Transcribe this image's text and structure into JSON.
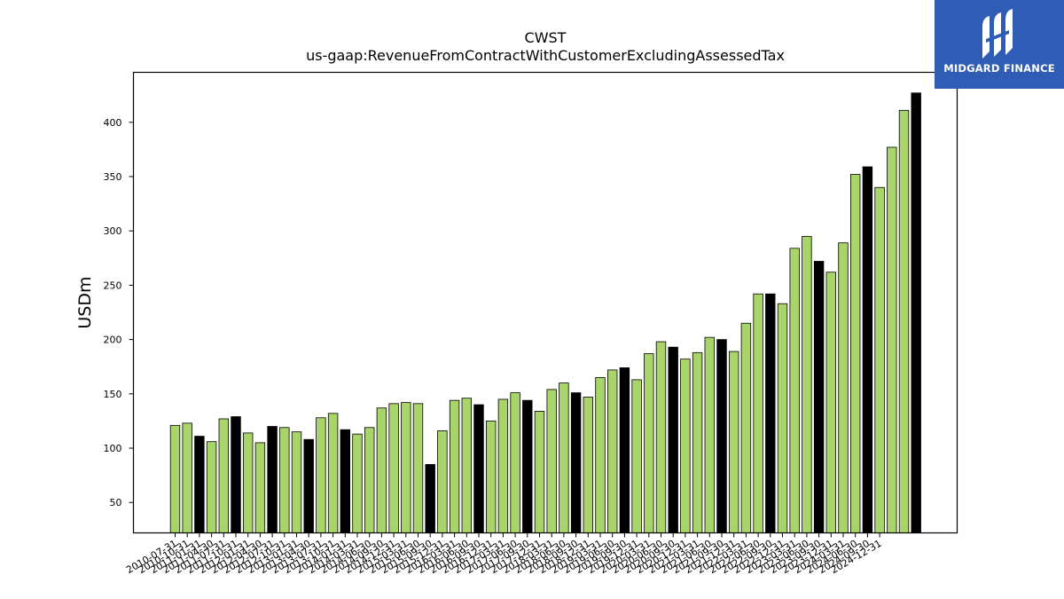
{
  "logo": {
    "text": "MIDGARD FINANCE",
    "icon": "midgard-logo-icon",
    "background": "#2f5cb4"
  },
  "chart_data": {
    "type": "bar",
    "title": "CWST",
    "subtitle": "us-gaap:RevenueFromContractWithCustomerExcludingAssessedTax",
    "xlabel": "",
    "ylabel": "USDm",
    "ylim": [
      22,
      446
    ],
    "yticks": [
      50,
      100,
      150,
      200,
      250,
      300,
      350,
      400
    ],
    "grid": false,
    "colors": {
      "quarter": "#a8d46a",
      "annual": "#000000"
    },
    "categories": [
      "2010-07-31",
      "2010-10-31",
      "2011-01-31",
      "2011-04-30",
      "2011-07-31",
      "2011-10-31",
      "2012-01-31",
      "2012-04-30",
      "2012-07-31",
      "2012-10-31",
      "2013-01-31",
      "2013-04-30",
      "2013-07-31",
      "2013-10-31",
      "2014-01-31",
      "2014-03-31",
      "2014-06-30",
      "2014-09-30",
      "2014-12-31",
      "2015-03-31",
      "2015-06-30",
      "2015-09-30",
      "2015-12-31",
      "2016-03-31",
      "2016-06-30",
      "2016-09-30",
      "2016-12-31",
      "2017-03-31",
      "2017-06-30",
      "2017-09-30",
      "2017-12-31",
      "2018-03-31",
      "2018-06-30",
      "2018-09-30",
      "2018-12-31",
      "2019-03-31",
      "2019-06-30",
      "2019-09-30",
      "2019-12-31",
      "2020-03-31",
      "2020-06-30",
      "2020-09-30",
      "2020-12-31",
      "2021-03-31",
      "2021-06-30",
      "2021-09-30",
      "2021-12-31",
      "2022-03-31",
      "2022-06-30",
      "2022-09-30",
      "2022-12-31",
      "2023-03-31",
      "2023-06-30",
      "2023-09-30",
      "2023-12-31",
      "2024-03-31",
      "2024-06-30",
      "2024-09-30",
      "2024-12-31"
    ],
    "values": [
      121,
      123,
      111,
      106,
      127,
      129,
      114,
      105,
      120,
      119,
      115,
      108,
      128,
      132,
      117,
      113,
      119,
      137,
      141,
      142,
      141,
      85,
      116,
      144,
      146,
      140,
      125,
      145,
      151,
      144,
      134,
      154,
      160,
      151,
      147,
      165,
      172,
      174,
      163,
      187,
      198,
      193,
      182,
      188,
      202,
      200,
      189,
      215,
      242,
      242,
      233,
      284,
      295,
      272,
      262,
      289,
      352,
      359,
      340
    ],
    "extra_values": [
      377,
      411,
      427
    ],
    "annual_flags": [
      0,
      0,
      1,
      0,
      0,
      1,
      0,
      0,
      1,
      0,
      0,
      1,
      0,
      0,
      1,
      0,
      0,
      0,
      0,
      0,
      0,
      1,
      0,
      0,
      0,
      1,
      0,
      0,
      0,
      1,
      0,
      0,
      0,
      1,
      0,
      0,
      0,
      1,
      0,
      0,
      0,
      1,
      0,
      0,
      0,
      1,
      0,
      0,
      0,
      1,
      0,
      0,
      0,
      1,
      0,
      0,
      0,
      1,
      0
    ]
  }
}
